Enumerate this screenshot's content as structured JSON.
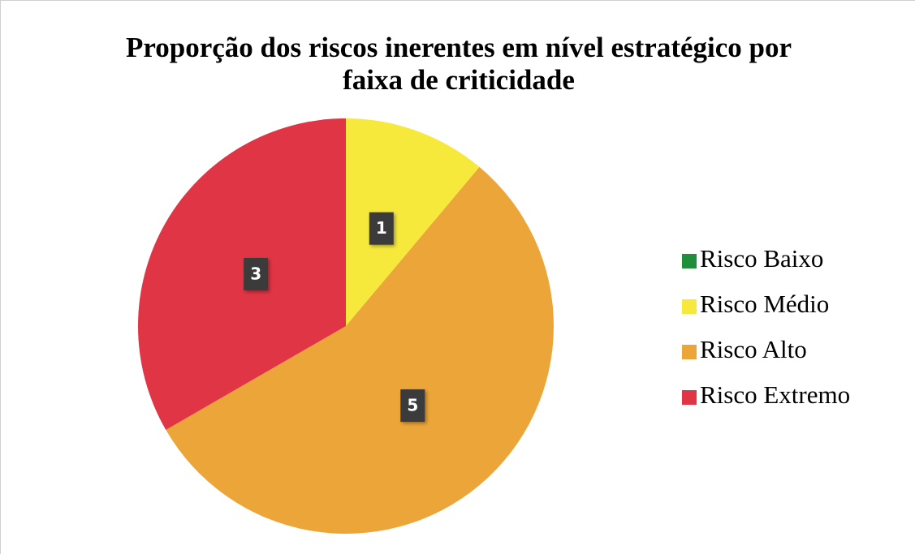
{
  "chart_data": {
    "type": "pie",
    "title": [
      "Proporção dos riscos inerentes em nível estratégico por",
      "faixa de criticidade"
    ],
    "categories": [
      "Risco Baixo",
      "Risco Médio",
      "Risco Alto",
      "Risco Extremo"
    ],
    "values": [
      0,
      1,
      5,
      3
    ],
    "colors": [
      "#1f8f3c",
      "#f6e93c",
      "#eca538",
      "#e03545"
    ],
    "legend": "right"
  }
}
